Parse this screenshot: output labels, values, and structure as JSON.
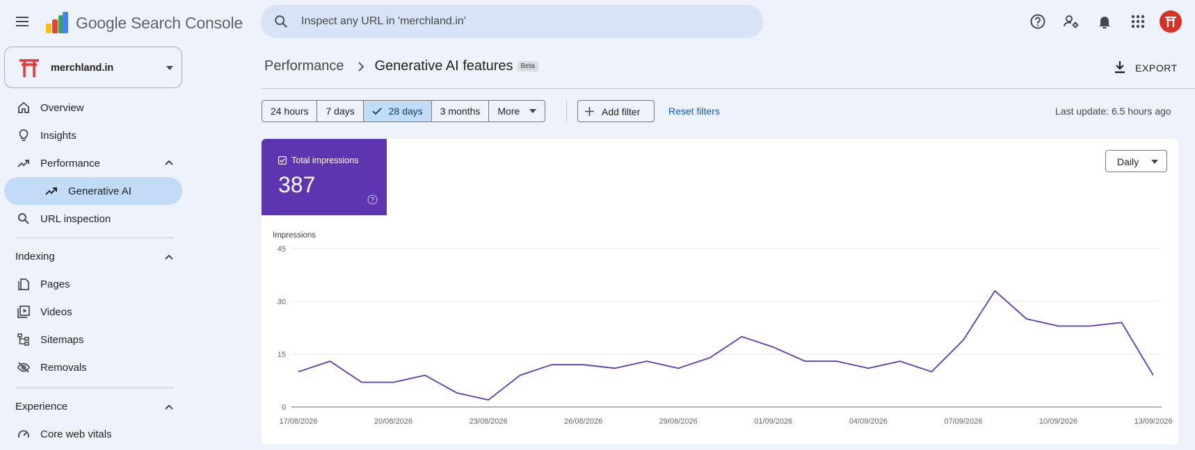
{
  "app": {
    "title": "Google Search Console"
  },
  "search": {
    "placeholder": "Inspect any URL in 'merchland.in'",
    "value": ""
  },
  "top_icons": [
    "menu-icon",
    "help-icon",
    "manage-users-icon",
    "bell-icon",
    "apps-grid-icon"
  ],
  "property": {
    "name": "merchland.in"
  },
  "sidebar": {
    "overview": "Overview",
    "insights": "Insights",
    "performance": "Performance",
    "generative_ai": "Generative AI",
    "url_inspection": "URL inspection",
    "indexing_heading": "Indexing",
    "pages": "Pages",
    "videos": "Videos",
    "sitemaps": "Sitemaps",
    "removals": "Removals",
    "experience_heading": "Experience",
    "core_web_vitals": "Core web vitals"
  },
  "header": {
    "breadcrumb_parent": "Performance",
    "title": "Generative AI features",
    "badge": "Beta",
    "export_label": "EXPORT"
  },
  "filters": {
    "ranges": [
      "24 hours",
      "7 days",
      "28 days",
      "3 months"
    ],
    "more": "More",
    "selected_range": "28 days",
    "add_filter": "Add filter",
    "reset": "Reset filters",
    "last_update": "Last update: 6.5 hours ago"
  },
  "metric": {
    "label": "Total impressions",
    "value": "387",
    "checked": true
  },
  "granularity": {
    "selected": "Daily"
  },
  "colors": {
    "accent": "#5e35b1",
    "line": "#5e35b1",
    "active_nav": "#c2dcf7",
    "link": "#0b57d0"
  },
  "chart_data": {
    "type": "line",
    "ylabel": "Impressions",
    "ylim": [
      0,
      45
    ],
    "yticks": [
      0,
      15,
      30,
      45
    ],
    "x_tick_labels": [
      "17/08/2026",
      "20/08/2026",
      "23/08/2026",
      "26/08/2026",
      "29/08/2026",
      "01/09/2026",
      "04/09/2026",
      "07/09/2026",
      "10/09/2026",
      "13/09/2026"
    ],
    "grid": true,
    "series": [
      {
        "x": [
          "17/08/2026",
          "18/08/2026",
          "19/08/2026",
          "20/08/2026",
          "21/08/2026",
          "22/08/2026",
          "23/08/2026",
          "24/08/2026",
          "25/08/2026",
          "26/08/2026",
          "27/08/2026",
          "28/08/2026",
          "29/08/2026",
          "30/08/2026",
          "31/08/2026",
          "01/09/2026",
          "02/09/2026",
          "03/09/2026",
          "04/09/2026",
          "05/09/2026",
          "06/09/2026",
          "07/09/2026",
          "08/09/2026",
          "09/09/2026",
          "10/09/2026",
          "11/09/2026",
          "12/09/2026",
          "13/09/2026"
        ],
        "values": [
          10,
          13,
          7,
          7,
          9,
          4,
          2,
          9,
          12,
          12,
          11,
          13,
          11,
          14,
          20,
          17,
          13,
          13,
          11,
          13,
          10,
          19,
          33,
          25,
          23,
          23,
          24,
          9
        ]
      }
    ]
  }
}
